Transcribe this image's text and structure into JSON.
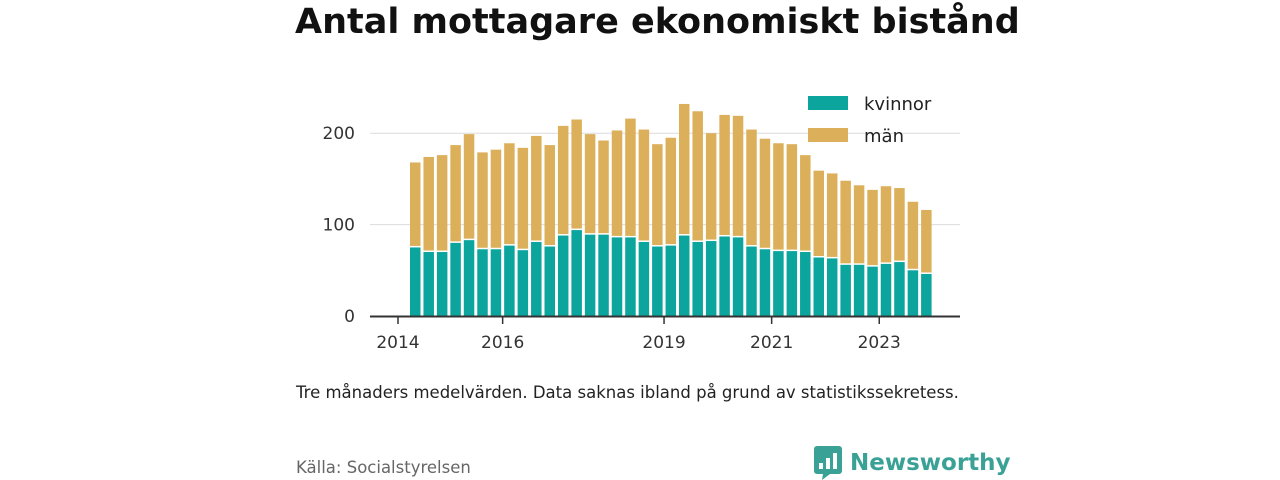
{
  "title": "Antal mottagare ekonomiskt bistånd",
  "note": "Tre månaders medelvärden. Data saknas ibland på grund av statistikssekretess.",
  "source": "Källa: Socialstyrelsen",
  "brand": {
    "name": "Newsworthy",
    "icon": "newsworthy-logo-icon",
    "color": "#3aa196"
  },
  "chart_data": {
    "type": "bar",
    "stacked": true,
    "title": "Antal mottagare ekonomiskt bistånd",
    "xlabel": "",
    "ylabel": "",
    "ylim": [
      0,
      240
    ],
    "yticks": [
      0,
      100,
      200
    ],
    "xticks": [
      "2014",
      "2016",
      "2019",
      "2021",
      "2023"
    ],
    "grid": true,
    "legend_position": "top-right",
    "x": [
      "2014-Q2",
      "2014-Q3",
      "2014-Q4",
      "2015-Q1",
      "2015-Q2",
      "2015-Q3",
      "2015-Q4",
      "2016-Q1",
      "2016-Q2",
      "2016-Q3",
      "2016-Q4",
      "2017-Q1",
      "2017-Q2",
      "2017-Q3",
      "2017-Q4",
      "2018-Q1",
      "2018-Q2",
      "2018-Q3",
      "2018-Q4",
      "2019-Q1",
      "2019-Q2",
      "2019-Q3",
      "2019-Q4",
      "2020-Q1",
      "2020-Q2",
      "2020-Q3",
      "2020-Q4",
      "2021-Q1",
      "2021-Q2",
      "2021-Q3",
      "2021-Q4",
      "2022-Q1",
      "2022-Q2",
      "2022-Q3",
      "2022-Q4",
      "2023-Q1",
      "2023-Q2",
      "2023-Q3",
      "2023-Q4",
      "2024-Q1"
    ],
    "series": [
      {
        "name": "kvinnor",
        "color": "#0ba59e",
        "values": [
          75,
          70,
          70,
          80,
          83,
          73,
          73,
          77,
          72,
          81,
          76,
          88,
          94,
          89,
          89,
          86,
          86,
          81,
          76,
          77,
          88,
          81,
          82,
          87,
          86,
          76,
          73,
          71,
          71,
          70,
          64,
          63,
          56,
          56,
          54,
          57,
          59,
          50,
          46,
          0
        ]
      },
      {
        "name": "män",
        "color": "#dcb05b",
        "values": [
          93,
          104,
          106,
          107,
          116,
          106,
          109,
          112,
          112,
          116,
          111,
          120,
          121,
          110,
          103,
          117,
          130,
          123,
          112,
          118,
          144,
          143,
          118,
          133,
          133,
          128,
          121,
          118,
          117,
          106,
          95,
          93,
          92,
          87,
          84,
          85,
          81,
          75,
          70,
          0
        ]
      }
    ]
  }
}
